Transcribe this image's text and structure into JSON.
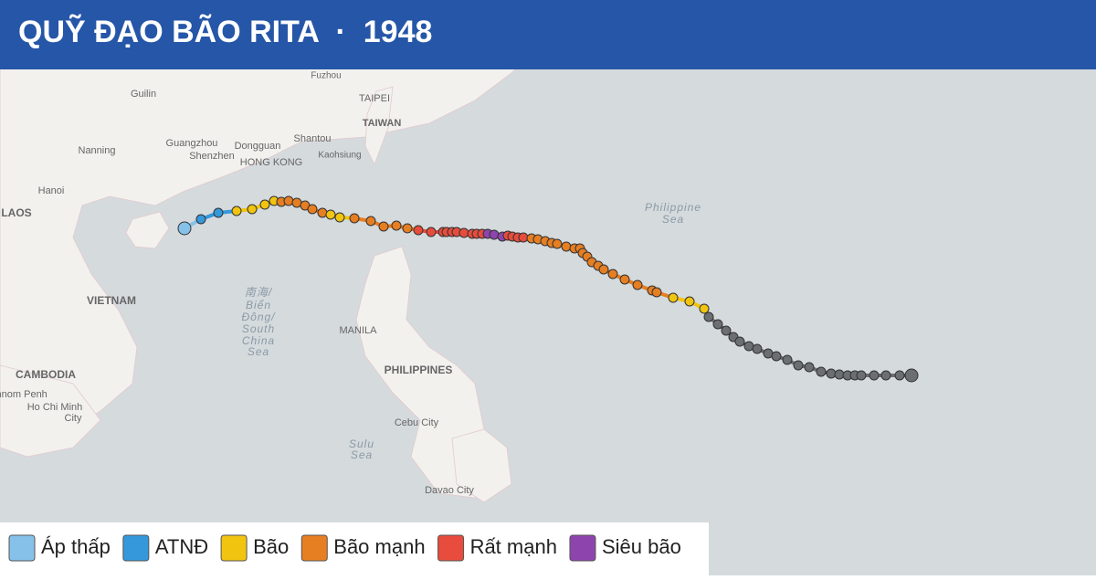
{
  "header": {
    "title": "QUỸ ĐẠO BÃO RITA  ·  1948"
  },
  "map_labels": [
    "Fuzhou",
    "TAIPEI",
    "TAIWAN",
    "Guilin",
    "Guangzhou",
    "Dongguan",
    "Shantou",
    "Shenzhen",
    "HONG KONG",
    "Kaohsiung",
    "Nanning",
    "Hanoi",
    "LAOS",
    "VIETNAM",
    "Philippine",
    "Sea",
    "南海/",
    "Biển",
    "Đông/",
    "South",
    "China",
    "Sea",
    "MANILA",
    "PHILIPPINES",
    "CAMBODIA",
    "Phnom Penh",
    "Ho Chi Minh",
    "City",
    "Cebu City",
    "Sulu",
    "Sea",
    "Davao City"
  ],
  "legend": [
    {
      "name": "Áp thấp",
      "color": "#85c1e9"
    },
    {
      "name": "ATNĐ",
      "color": "#3498db"
    },
    {
      "name": "Bão",
      "color": "#f1c40f"
    },
    {
      "name": "Bão mạnh",
      "color": "#e67e22"
    },
    {
      "name": "Rất mạnh",
      "color": "#e74c3c"
    },
    {
      "name": "Siêu bão",
      "color": "#8e44ad"
    }
  ]
}
